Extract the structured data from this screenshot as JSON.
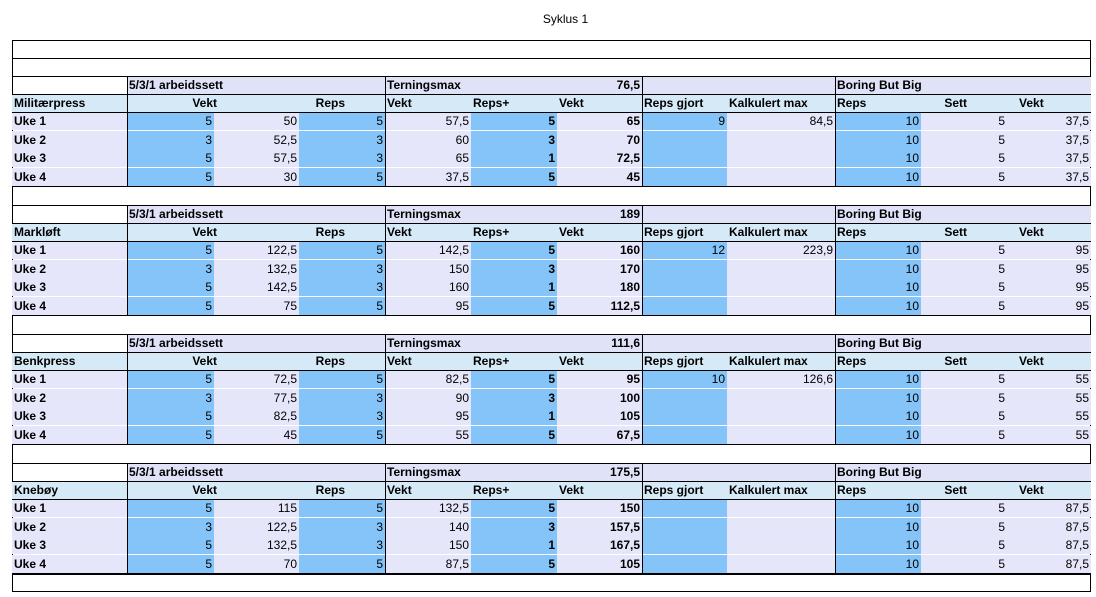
{
  "title": "Syklus 1",
  "labels": {
    "section_531": "5/3/1 arbeidssett",
    "terningsmax": "Terningsmax",
    "bbb": "Boring But Big",
    "vekt": "Vekt",
    "reps": "Reps",
    "reps_plus": "Reps+",
    "reps_gjort": "Reps gjort",
    "kalkulert": "Kalkulert max",
    "sett": "Sett"
  },
  "exercises": [
    {
      "name": "Militærpress",
      "terningsmax": "76,5",
      "weeks": [
        {
          "label": "Uke 1",
          "s1r": "5",
          "s1v": "50",
          "s2r": "5",
          "s2v": "57,5",
          "s3r": "5",
          "s3v": "65",
          "gjort": "9",
          "kalk": "84,5",
          "bbb_reps": "10",
          "bbb_sett": "5",
          "bbb_vekt": "37,5"
        },
        {
          "label": "Uke 2",
          "s1r": "3",
          "s1v": "52,5",
          "s2r": "3",
          "s2v": "60",
          "s3r": "3",
          "s3v": "70",
          "gjort": "",
          "kalk": "",
          "bbb_reps": "10",
          "bbb_sett": "5",
          "bbb_vekt": "37,5"
        },
        {
          "label": "Uke 3",
          "s1r": "5",
          "s1v": "57,5",
          "s2r": "3",
          "s2v": "65",
          "s3r": "1",
          "s3v": "72,5",
          "gjort": "",
          "kalk": "",
          "bbb_reps": "10",
          "bbb_sett": "5",
          "bbb_vekt": "37,5"
        },
        {
          "label": "Uke 4",
          "s1r": "5",
          "s1v": "30",
          "s2r": "5",
          "s2v": "37,5",
          "s3r": "5",
          "s3v": "45",
          "gjort": "",
          "kalk": "",
          "bbb_reps": "10",
          "bbb_sett": "5",
          "bbb_vekt": "37,5"
        }
      ]
    },
    {
      "name": "Markløft",
      "terningsmax": "189",
      "weeks": [
        {
          "label": "Uke 1",
          "s1r": "5",
          "s1v": "122,5",
          "s2r": "5",
          "s2v": "142,5",
          "s3r": "5",
          "s3v": "160",
          "gjort": "12",
          "kalk": "223,9",
          "bbb_reps": "10",
          "bbb_sett": "5",
          "bbb_vekt": "95"
        },
        {
          "label": "Uke 2",
          "s1r": "3",
          "s1v": "132,5",
          "s2r": "3",
          "s2v": "150",
          "s3r": "3",
          "s3v": "170",
          "gjort": "",
          "kalk": "",
          "bbb_reps": "10",
          "bbb_sett": "5",
          "bbb_vekt": "95"
        },
        {
          "label": "Uke 3",
          "s1r": "5",
          "s1v": "142,5",
          "s2r": "3",
          "s2v": "160",
          "s3r": "1",
          "s3v": "180",
          "gjort": "",
          "kalk": "",
          "bbb_reps": "10",
          "bbb_sett": "5",
          "bbb_vekt": "95"
        },
        {
          "label": "Uke 4",
          "s1r": "5",
          "s1v": "75",
          "s2r": "5",
          "s2v": "95",
          "s3r": "5",
          "s3v": "112,5",
          "gjort": "",
          "kalk": "",
          "bbb_reps": "10",
          "bbb_sett": "5",
          "bbb_vekt": "95"
        }
      ]
    },
    {
      "name": "Benkpress",
      "terningsmax": "111,6",
      "weeks": [
        {
          "label": "Uke 1",
          "s1r": "5",
          "s1v": "72,5",
          "s2r": "5",
          "s2v": "82,5",
          "s3r": "5",
          "s3v": "95",
          "gjort": "10",
          "kalk": "126,6",
          "bbb_reps": "10",
          "bbb_sett": "5",
          "bbb_vekt": "55"
        },
        {
          "label": "Uke 2",
          "s1r": "3",
          "s1v": "77,5",
          "s2r": "3",
          "s2v": "90",
          "s3r": "3",
          "s3v": "100",
          "gjort": "",
          "kalk": "",
          "bbb_reps": "10",
          "bbb_sett": "5",
          "bbb_vekt": "55"
        },
        {
          "label": "Uke 3",
          "s1r": "5",
          "s1v": "82,5",
          "s2r": "3",
          "s2v": "95",
          "s3r": "1",
          "s3v": "105",
          "gjort": "",
          "kalk": "",
          "bbb_reps": "10",
          "bbb_sett": "5",
          "bbb_vekt": "55"
        },
        {
          "label": "Uke 4",
          "s1r": "5",
          "s1v": "45",
          "s2r": "5",
          "s2v": "55",
          "s3r": "5",
          "s3v": "67,5",
          "gjort": "",
          "kalk": "",
          "bbb_reps": "10",
          "bbb_sett": "5",
          "bbb_vekt": "55"
        }
      ]
    },
    {
      "name": "Knebøy",
      "terningsmax": "175,5",
      "weeks": [
        {
          "label": "Uke 1",
          "s1r": "5",
          "s1v": "115",
          "s2r": "5",
          "s2v": "132,5",
          "s3r": "5",
          "s3v": "150",
          "gjort": "",
          "kalk": "",
          "bbb_reps": "10",
          "bbb_sett": "5",
          "bbb_vekt": "87,5"
        },
        {
          "label": "Uke 2",
          "s1r": "3",
          "s1v": "122,5",
          "s2r": "3",
          "s2v": "140",
          "s3r": "3",
          "s3v": "157,5",
          "gjort": "",
          "kalk": "",
          "bbb_reps": "10",
          "bbb_sett": "5",
          "bbb_vekt": "87,5"
        },
        {
          "label": "Uke 3",
          "s1r": "5",
          "s1v": "132,5",
          "s2r": "3",
          "s2v": "150",
          "s3r": "1",
          "s3v": "167,5",
          "gjort": "",
          "kalk": "",
          "bbb_reps": "10",
          "bbb_sett": "5",
          "bbb_vekt": "87,5"
        },
        {
          "label": "Uke 4",
          "s1r": "5",
          "s1v": "70",
          "s2r": "5",
          "s2v": "87,5",
          "s3r": "5",
          "s3v": "105",
          "gjort": "",
          "kalk": "",
          "bbb_reps": "10",
          "bbb_sett": "5",
          "bbb_vekt": "87,5"
        }
      ]
    }
  ]
}
